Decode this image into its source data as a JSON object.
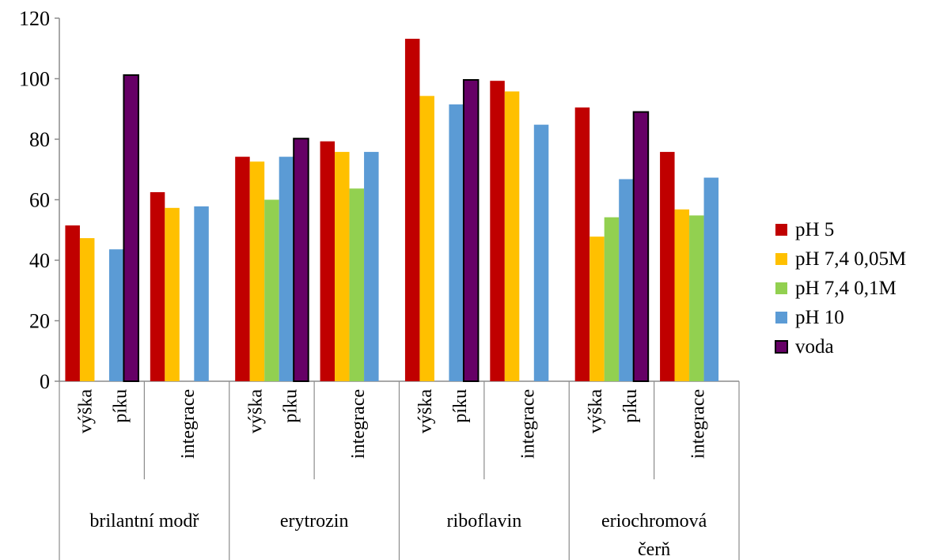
{
  "chart_data": {
    "type": "bar",
    "ylim": [
      0,
      120
    ],
    "yticks": [
      0,
      20,
      40,
      60,
      80,
      100,
      120
    ],
    "grid": false,
    "legend_placement": "right",
    "groups": [
      {
        "label": "brilantní modř",
        "subcats": [
          {
            "label": "výška píku"
          },
          {
            "label": "integrace"
          }
        ]
      },
      {
        "label": "erytrozin",
        "subcats": [
          {
            "label": "výška píku"
          },
          {
            "label": "integrace"
          }
        ]
      },
      {
        "label": "riboflavin",
        "subcats": [
          {
            "label": "výška píku"
          },
          {
            "label": "integrace"
          }
        ]
      },
      {
        "label": "eriochromová čerň",
        "subcats": [
          {
            "label": "výška píku"
          },
          {
            "label": "integrace"
          }
        ]
      }
    ],
    "series": [
      {
        "name": "pH 5",
        "color": "#C00000",
        "values": [
          51.5,
          62.5,
          74.2,
          79.3,
          113.2,
          99.3,
          90.5,
          75.8
        ]
      },
      {
        "name": "pH 7,4 0,05M",
        "color": "#FFC000",
        "values": [
          47.3,
          57.3,
          72.6,
          75.8,
          94.3,
          95.8,
          47.8,
          56.8
        ]
      },
      {
        "name": "pH 7,4 0,1M",
        "color": "#92D050",
        "values": [
          null,
          null,
          60.0,
          63.7,
          null,
          null,
          54.2,
          54.8
        ]
      },
      {
        "name": "pH 10",
        "color": "#5B9BD5",
        "values": [
          43.6,
          57.8,
          74.2,
          75.8,
          91.5,
          84.8,
          66.8,
          67.3
        ]
      },
      {
        "name": "voda",
        "color": "#660066",
        "values": [
          101.2,
          null,
          80.2,
          null,
          99.6,
          null,
          89.0,
          null
        ]
      }
    ]
  }
}
